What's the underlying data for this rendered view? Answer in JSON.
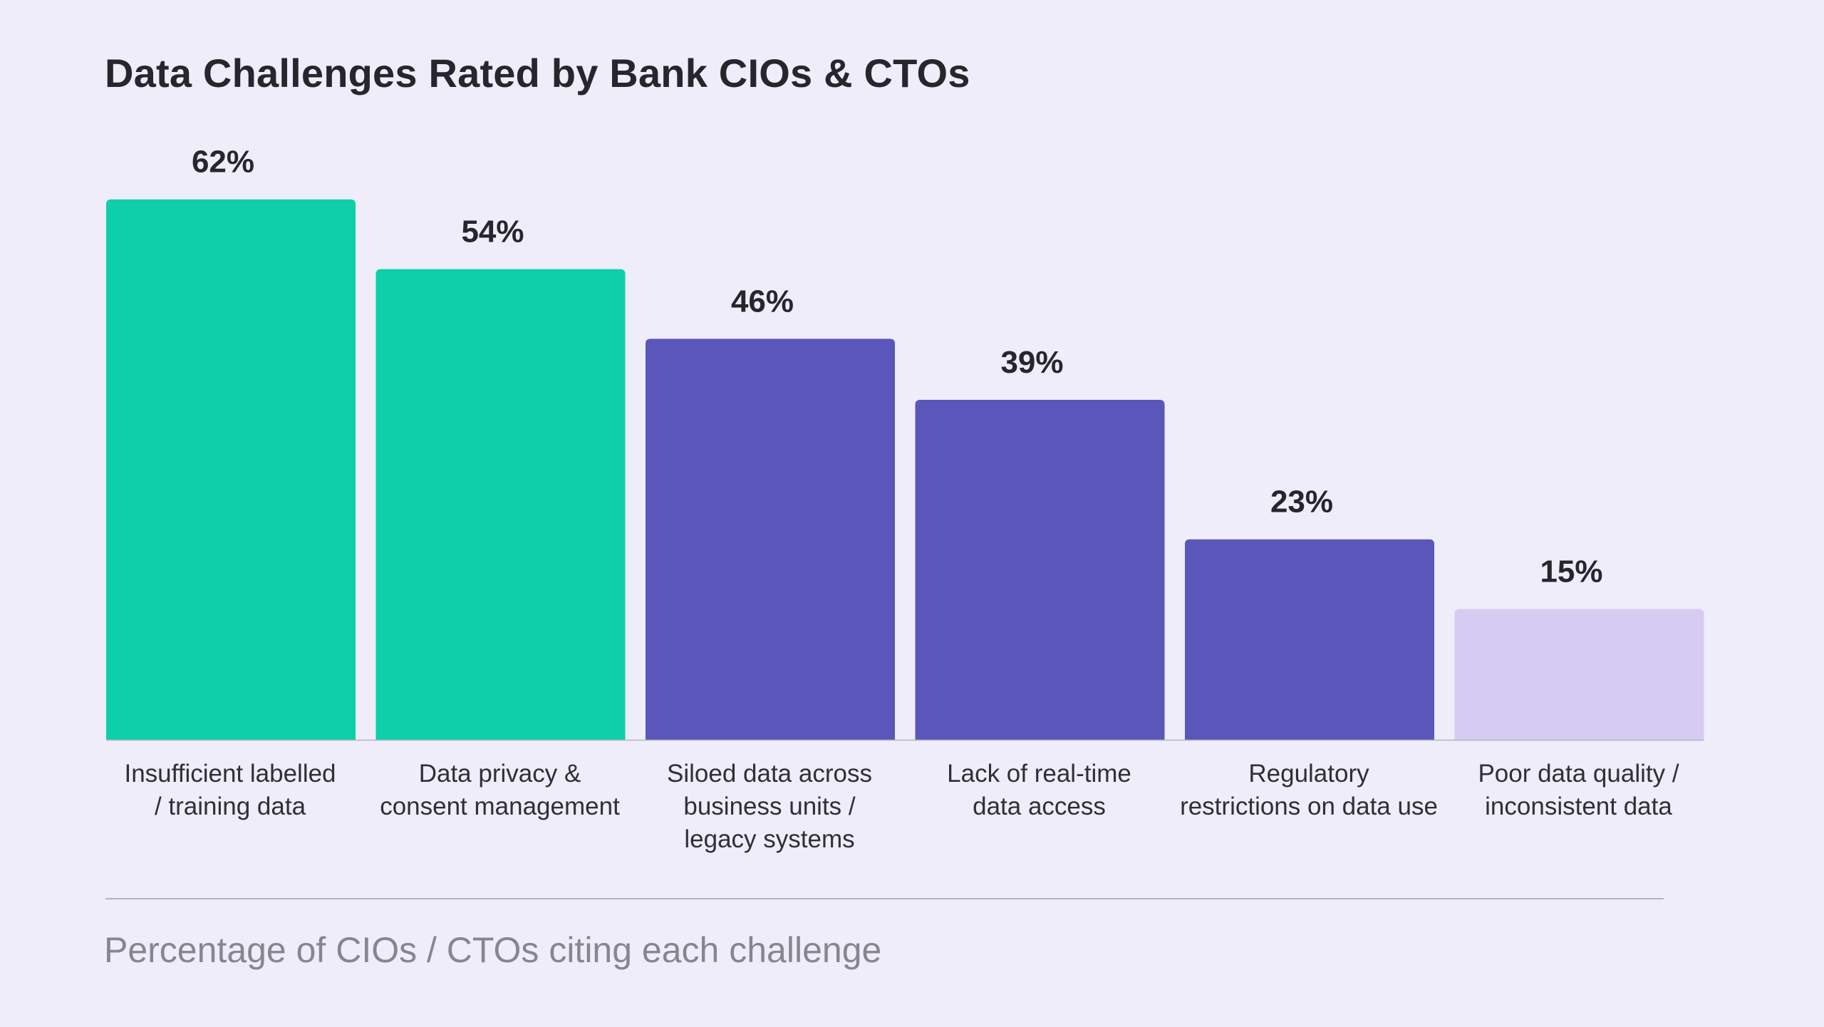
{
  "title": "Data Challenges Rated by Bank CIOs & CTOs",
  "footer": "Percentage of CIOs / CTOs citing each challenge",
  "chart_data": {
    "type": "bar",
    "categories": [
      [
        "Insufficient labelled",
        "/ training data"
      ],
      [
        "Data privacy &",
        "consent management"
      ],
      [
        "Siloed data across",
        "business units /",
        "legacy systems"
      ],
      [
        "Lack of real-time",
        "data access"
      ],
      [
        "Regulatory",
        "restrictions on data use"
      ],
      [
        "Poor data quality /",
        "inconsistent data"
      ]
    ],
    "values": [
      62,
      54,
      46,
      39,
      23,
      15
    ],
    "value_labels": [
      "62%",
      "54%",
      "46%",
      "39%",
      "23%",
      "15%"
    ],
    "bar_colors": [
      "#0ecfa8",
      "#0ecfa8",
      "#5a56ba",
      "#5a56ba",
      "#5a56ba",
      "#d6ccf3"
    ],
    "unit": "%",
    "grid": false,
    "legend": "none",
    "baseline_color": "#b4b3c6"
  }
}
